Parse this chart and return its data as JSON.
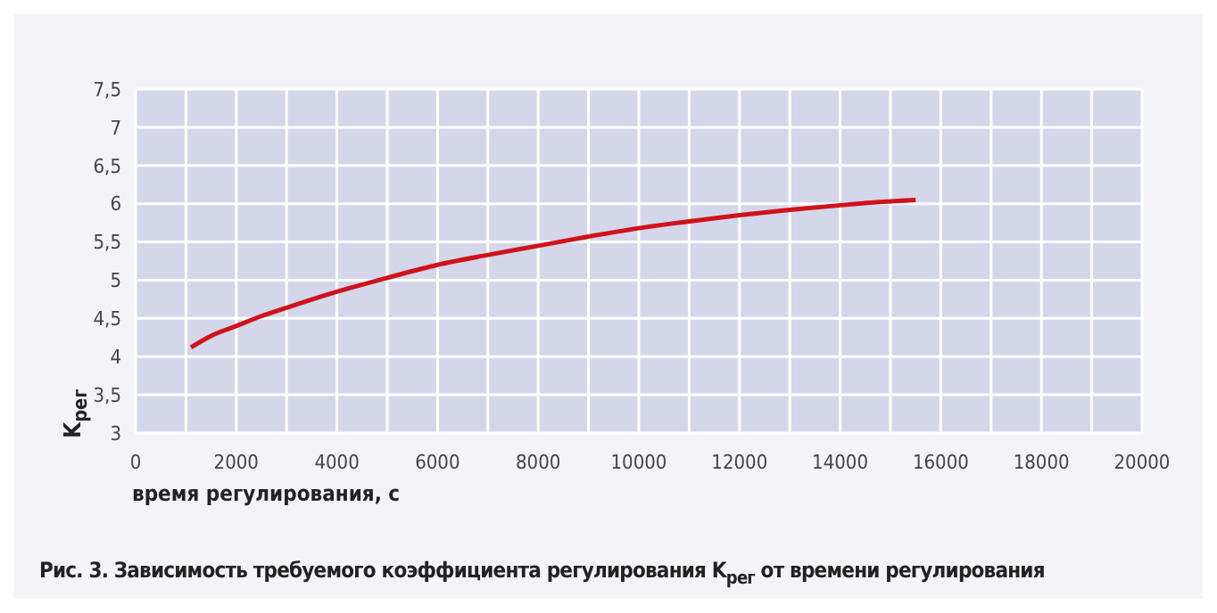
{
  "chart_data": {
    "type": "line",
    "title": "Рис. 3. Зависимость требуемого коэффициента регулирования K$_{рег}$ от времени регулирования",
    "xlabel": "время регулирования, с",
    "ylabel": "K$_{рег}$",
    "x": [
      1100,
      1500,
      2000,
      2500,
      3000,
      4000,
      5000,
      6000,
      7000,
      8000,
      9000,
      10000,
      11000,
      12000,
      13000,
      14000,
      15000,
      15500
    ],
    "series": [
      {
        "color": "#d0121b",
        "values": [
          4.12,
          4.27,
          4.4,
          4.53,
          4.64,
          4.85,
          5.03,
          5.2,
          5.33,
          5.45,
          5.57,
          5.68,
          5.77,
          5.85,
          5.92,
          5.98,
          6.03,
          6.05
        ]
      }
    ],
    "xlim": [
      0,
      20000
    ],
    "xticks": [
      0,
      {
        "value": 1000,
        "label": null
      },
      2000,
      {
        "value": 3000,
        "label": null
      },
      4000,
      {
        "value": 5000,
        "label": null
      },
      6000,
      {
        "value": 7000,
        "label": null
      },
      8000,
      {
        "value": 9000,
        "label": null
      },
      10000,
      {
        "value": 11000,
        "label": null
      },
      12000,
      {
        "value": 13000,
        "label": null
      },
      14000,
      {
        "value": 15000,
        "label": null
      },
      16000,
      {
        "value": 17000,
        "label": null
      },
      18000,
      {
        "value": 19000,
        "label": null
      },
      20000
    ],
    "ylim": [
      3,
      7.5
    ],
    "yticks": [
      3,
      {
        "value": 3.5,
        "label": "3,5"
      },
      4,
      {
        "value": 4.5,
        "label": "4,5"
      },
      5,
      {
        "value": 5.5,
        "label": "5,5"
      },
      6,
      {
        "value": 6.5,
        "label": "6,5"
      },
      7,
      {
        "value": 7.5,
        "label": "7,5"
      }
    ],
    "grid": true,
    "legend": false,
    "marker": "none",
    "line_style": "solid"
  }
}
